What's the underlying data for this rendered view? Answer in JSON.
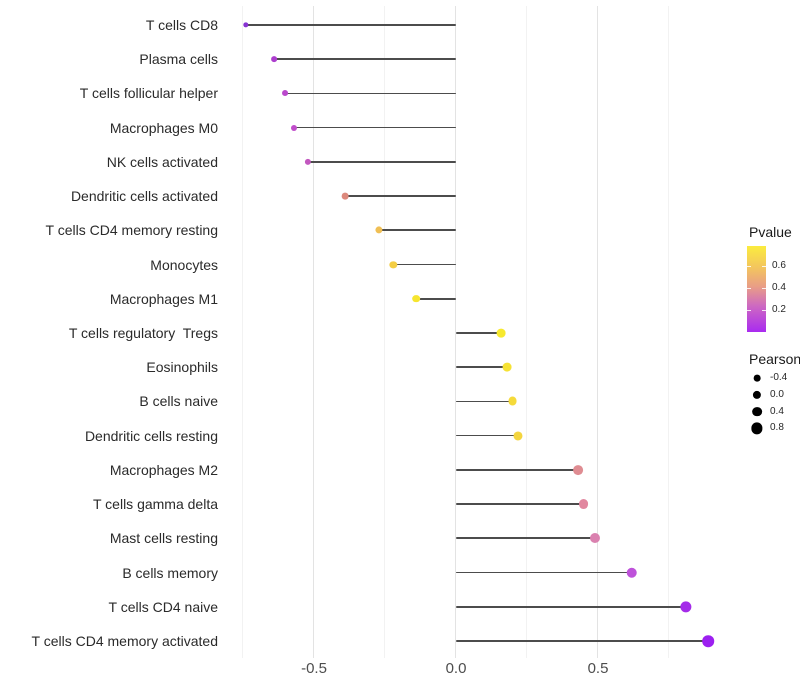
{
  "chart_data": {
    "type": "scatter",
    "variant": "horizontal-lollipop",
    "title": "",
    "xlabel": "",
    "ylabel": "",
    "categories": [
      "T cells CD8",
      "Plasma cells",
      "T cells follicular helper",
      "Macrophages M0",
      "NK cells activated",
      "Dendritic cells activated",
      "T cells CD4 memory resting",
      "Monocytes",
      "Macrophages M1",
      "T cells regulatory  Tregs",
      "Eosinophils",
      "B cells naive",
      "Dendritic cells resting",
      "Macrophages M2",
      "T cells gamma delta",
      "Mast cells resting",
      "B cells memory",
      "T cells CD4 naive",
      "T cells CD4 memory activated"
    ],
    "series": [
      {
        "name": "Pearson",
        "values": [
          -0.74,
          -0.64,
          -0.6,
          -0.57,
          -0.52,
          -0.39,
          -0.27,
          -0.22,
          -0.14,
          0.16,
          0.18,
          0.2,
          0.22,
          0.43,
          0.45,
          0.49,
          0.62,
          0.81,
          0.89
        ]
      }
    ],
    "point_colors": [
      "#8733D2",
      "#AC3DCE",
      "#BA48CC",
      "#C04DCA",
      "#C257BF",
      "#DD897D",
      "#F0BF54",
      "#F4CE44",
      "#F6E52F",
      "#F7E92E",
      "#F6E234",
      "#F5DA3A",
      "#F4D53F",
      "#DF8C92",
      "#E1879F",
      "#DA81AF",
      "#BE52DA",
      "#A42BE9",
      "#9C20F0"
    ],
    "pvalue_approx": [
      0.03,
      0.15,
      0.19,
      0.21,
      0.24,
      0.45,
      0.58,
      0.62,
      0.7,
      0.72,
      0.69,
      0.66,
      0.64,
      0.43,
      0.41,
      0.36,
      0.2,
      0.05,
      0.02
    ],
    "x_axis": {
      "tick_labels": [
        "-0.5",
        "0.0",
        "0.5"
      ],
      "tick_values": [
        -0.5,
        0.0,
        0.5
      ],
      "minor_tick_values": [
        -0.75,
        -0.25,
        0.25,
        0.75
      ],
      "range": [
        -0.82,
        0.97
      ]
    },
    "grid": {
      "vertical": true,
      "horizontal": false
    },
    "baseline": 0.0,
    "stem_color": "#4c4c4c",
    "legend_pvalue": {
      "title": "Pvalue",
      "tick_labels": [
        "0.6",
        "0.4",
        "0.2"
      ],
      "tick_values": [
        0.6,
        0.4,
        0.2
      ],
      "range_approx": [
        0.0,
        0.77
      ],
      "gradient_stops_top_to_bottom": [
        "#FBEC3E",
        "#F3C55E",
        "#E99E86",
        "#CD68C2",
        "#A92BF0"
      ],
      "gradient_positions_pct": [
        0,
        25,
        47,
        70,
        100
      ]
    },
    "legend_pearson": {
      "title": "Pearson",
      "labels": [
        "-0.4",
        "0.0",
        "0.4",
        "0.8"
      ],
      "values": [
        -0.4,
        0.0,
        0.4,
        0.8
      ],
      "dot_color": "#000000"
    }
  }
}
